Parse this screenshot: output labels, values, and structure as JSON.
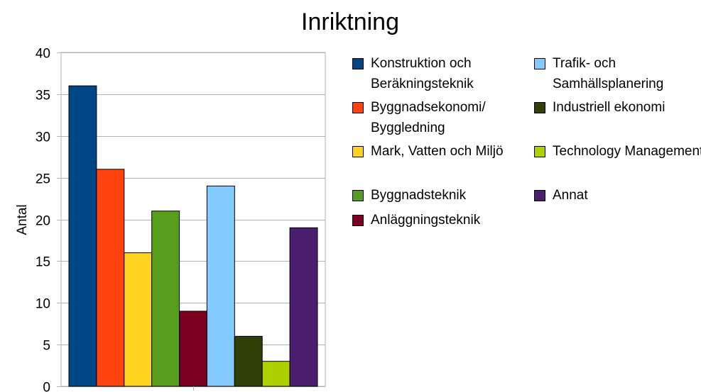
{
  "chart_data": {
    "type": "bar",
    "title": "Inriktning",
    "xlabel": "",
    "ylabel": "Antal",
    "ylim": [
      0,
      40
    ],
    "yticks": [
      0,
      5,
      10,
      15,
      20,
      25,
      30,
      35,
      40
    ],
    "grid": true,
    "legend_position": "right",
    "series": [
      {
        "name": "Konstruktion och Beräkningsteknik",
        "values": [
          36
        ],
        "color": "#004586"
      },
      {
        "name": "Byggnadsekonomi/ Byggledning",
        "values": [
          26
        ],
        "color": "#ff420e"
      },
      {
        "name": "Mark, Vatten och Miljö",
        "values": [
          16
        ],
        "color": "#ffd320"
      },
      {
        "name": "Byggnadsteknik",
        "values": [
          21
        ],
        "color": "#579d1c"
      },
      {
        "name": "Anläggningsteknik",
        "values": [
          9
        ],
        "color": "#7e0021"
      },
      {
        "name": "Trafik- och Samhällsplanering",
        "values": [
          24
        ],
        "color": "#83caff"
      },
      {
        "name": "Industriell ekonomi",
        "values": [
          6
        ],
        "color": "#314004"
      },
      {
        "name": "Technology Management",
        "values": [
          3
        ],
        "color": "#aecf00"
      },
      {
        "name": "Annat",
        "values": [
          19
        ],
        "color": "#4b1f6f"
      }
    ]
  }
}
